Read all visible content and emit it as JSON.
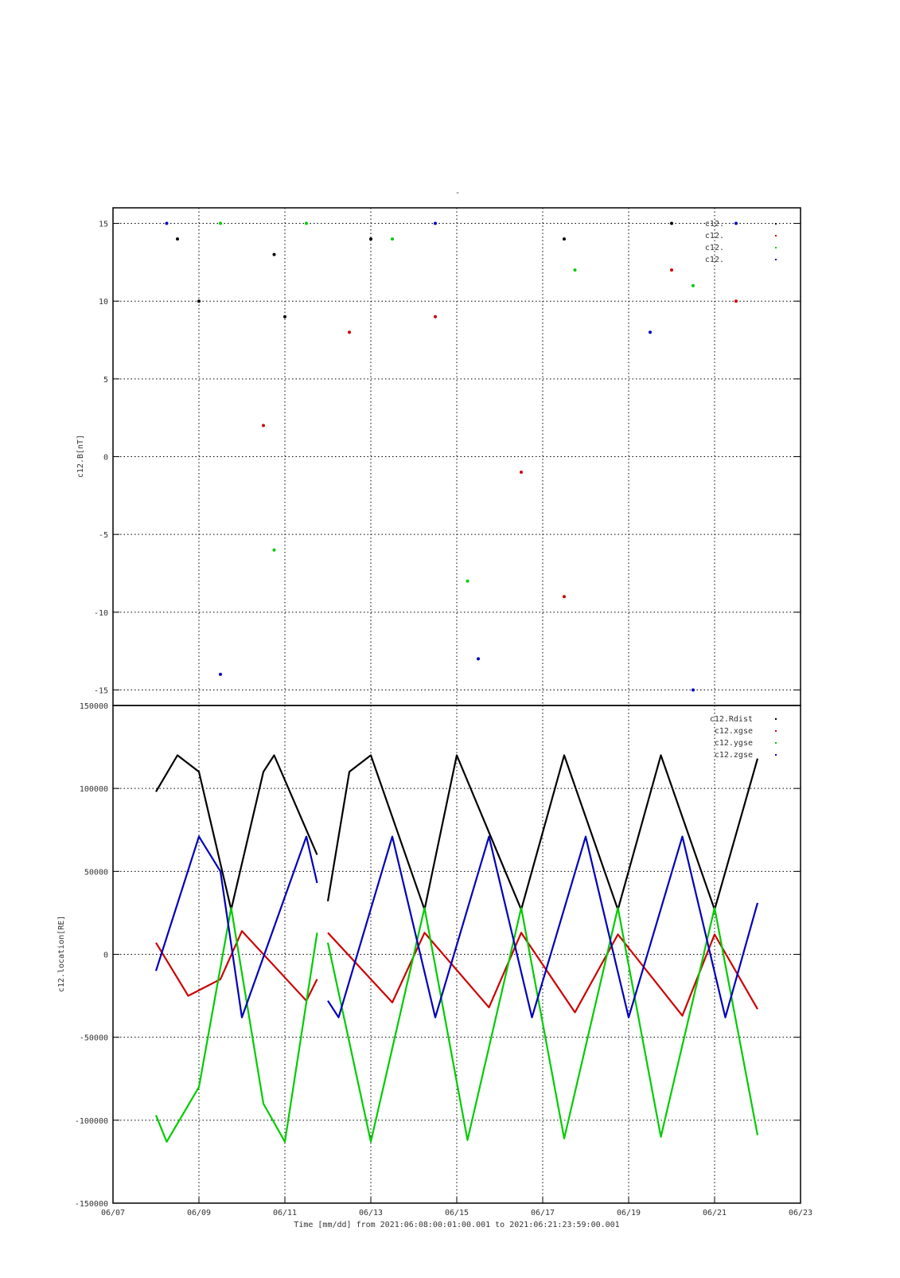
{
  "figure": {
    "top_title": "-",
    "footer_label": "Time [mm/dd]  from 2021:06:08:00:01:00.001  to  2021:06:21:23:59:00.001"
  },
  "colors": {
    "black": "#000000",
    "red": "#cc0000",
    "green": "#00cc00",
    "blue": "#0000bb",
    "grid": "#000000"
  },
  "chart_data": [
    {
      "type": "scatter",
      "id": "bfield",
      "ylabel": "c12.B[nT]",
      "ylim": [
        -16,
        16
      ],
      "yticks": [
        15,
        10,
        5,
        0,
        -5,
        -10,
        -15
      ],
      "xlim": [
        "06/07",
        "06/23"
      ],
      "xticks": [
        "06/07",
        "06/09",
        "06/11",
        "06/13",
        "06/15",
        "06/17",
        "06/19",
        "06/21",
        "06/23"
      ],
      "grid": true,
      "legend_position": "top-right",
      "legend": [
        "c12.",
        "c12.",
        "c12.",
        "c12."
      ],
      "x_range_days": [
        8.0,
        22.0
      ],
      "series": [
        {
          "color": "black",
          "points": [
            [
              "06/08 12:00",
              14
            ],
            [
              "06/09 00:00",
              10
            ],
            [
              "06/10 18:00",
              13
            ],
            [
              "06/11 00:00",
              9
            ],
            [
              "06/13 00:00",
              14
            ],
            [
              "06/17 12:00",
              14
            ],
            [
              "06/20 00:00",
              15
            ]
          ]
        },
        {
          "color": "red",
          "points": [
            [
              "06/10 12:00",
              2
            ],
            [
              "06/12 12:00",
              8
            ],
            [
              "06/14 12:00",
              9
            ],
            [
              "06/16 12:00",
              -1
            ],
            [
              "06/17 12:00",
              -9
            ],
            [
              "06/20 00:00",
              12
            ],
            [
              "06/21 12:00",
              10
            ]
          ]
        },
        {
          "color": "green",
          "points": [
            [
              "06/09 12:00",
              15
            ],
            [
              "06/11 12:00",
              15
            ],
            [
              "06/13 12:00",
              14
            ],
            [
              "06/17 18:00",
              12
            ],
            [
              "06/20 12:00",
              11
            ],
            [
              "06/10 18:00",
              -6
            ],
            [
              "06/15 06:00",
              -8
            ]
          ]
        },
        {
          "color": "blue",
          "points": [
            [
              "06/08 06:00",
              15
            ],
            [
              "06/09 12:00",
              -14
            ],
            [
              "06/14 12:00",
              15
            ],
            [
              "06/15 12:00",
              -13
            ],
            [
              "06/19 12:00",
              8
            ],
            [
              "06/20 12:00",
              -15
            ],
            [
              "06/21 12:00",
              15
            ]
          ]
        }
      ]
    },
    {
      "type": "line",
      "id": "location",
      "ylabel": "c12.location[RE]",
      "ylim": [
        -150000,
        150000
      ],
      "yticks": [
        150000,
        100000,
        50000,
        0,
        -50000,
        -100000,
        -150000
      ],
      "ytick_labels": [
        "150000",
        "100000",
        "50000",
        "0",
        "-50000",
        "-100000",
        "-150000"
      ],
      "xlim": [
        "06/07",
        "06/23"
      ],
      "xticks": [
        "06/07",
        "06/09",
        "06/11",
        "06/13",
        "06/15",
        "06/17",
        "06/19",
        "06/21",
        "06/23"
      ],
      "grid": true,
      "legend_position": "top-right",
      "legend": [
        "c12.Rdist",
        "c12.xgse",
        "c12.ygse",
        "c12.zgse"
      ],
      "data_gap": [
        "06/11 18:00",
        "06/12 00:00"
      ],
      "series": [
        {
          "name": "c12.Rdist",
          "color": "black",
          "points": [
            [
              "06/08 00:00",
              98000
            ],
            [
              "06/08 12:00",
              120000
            ],
            [
              "06/09 00:00",
              110000
            ],
            [
              "06/09 18:00",
              27000
            ],
            [
              "06/10 12:00",
              110000
            ],
            [
              "06/10 18:00",
              120000
            ],
            [
              "06/11 18:00",
              60000
            ],
            [
              "06/12 00:00",
              32000
            ],
            [
              "06/12 12:00",
              110000
            ],
            [
              "06/13 00:00",
              120000
            ],
            [
              "06/14 06:00",
              27000
            ],
            [
              "06/15 00:00",
              120000
            ],
            [
              "06/16 12:00",
              27000
            ],
            [
              "06/17 12:00",
              120000
            ],
            [
              "06/18 18:00",
              27000
            ],
            [
              "06/19 18:00",
              120000
            ],
            [
              "06/21 00:00",
              27000
            ],
            [
              "06/22 00:00",
              118000
            ]
          ]
        },
        {
          "name": "c12.xgse",
          "color": "red",
          "points": [
            [
              "06/08 00:00",
              7000
            ],
            [
              "06/08 18:00",
              -25000
            ],
            [
              "06/09 12:00",
              -15000
            ],
            [
              "06/10 00:00",
              14000
            ],
            [
              "06/11 12:00",
              -28000
            ],
            [
              "06/11 18:00",
              -15000
            ],
            [
              "06/12 00:00",
              13000
            ],
            [
              "06/13 12:00",
              -29000
            ],
            [
              "06/14 06:00",
              13000
            ],
            [
              "06/15 18:00",
              -32000
            ],
            [
              "06/16 12:00",
              13000
            ],
            [
              "06/17 18:00",
              -35000
            ],
            [
              "06/18 18:00",
              12000
            ],
            [
              "06/20 06:00",
              -37000
            ],
            [
              "06/21 00:00",
              12000
            ],
            [
              "06/22 00:00",
              -33000
            ]
          ]
        },
        {
          "name": "c12.ygse",
          "color": "green",
          "points": [
            [
              "06/08 00:00",
              -97000
            ],
            [
              "06/08 06:00",
              -113000
            ],
            [
              "06/09 00:00",
              -80000
            ],
            [
              "06/09 18:00",
              28000
            ],
            [
              "06/10 12:00",
              -90000
            ],
            [
              "06/11 00:00",
              -113000
            ],
            [
              "06/11 18:00",
              13000
            ],
            [
              "06/12 00:00",
              7000
            ],
            [
              "06/13 00:00",
              -113000
            ],
            [
              "06/14 06:00",
              28000
            ],
            [
              "06/15 06:00",
              -112000
            ],
            [
              "06/16 12:00",
              28000
            ],
            [
              "06/17 12:00",
              -111000
            ],
            [
              "06/18 18:00",
              28000
            ],
            [
              "06/19 18:00",
              -110000
            ],
            [
              "06/21 00:00",
              28000
            ],
            [
              "06/22 00:00",
              -109000
            ]
          ]
        },
        {
          "name": "c12.zgse",
          "color": "blue",
          "points": [
            [
              "06/08 00:00",
              -10000
            ],
            [
              "06/09 00:00",
              71000
            ],
            [
              "06/09 12:00",
              50000
            ],
            [
              "06/10 00:00",
              -38000
            ],
            [
              "06/11 12:00",
              71000
            ],
            [
              "06/11 18:00",
              43000
            ],
            [
              "06/12 00:00",
              -28000
            ],
            [
              "06/12 06:00",
              -38000
            ],
            [
              "06/13 12:00",
              71000
            ],
            [
              "06/14 12:00",
              -38000
            ],
            [
              "06/15 18:00",
              71000
            ],
            [
              "06/16 18:00",
              -38000
            ],
            [
              "06/18 00:00",
              71000
            ],
            [
              "06/19 00:00",
              -38000
            ],
            [
              "06/20 06:00",
              71000
            ],
            [
              "06/21 06:00",
              -38000
            ],
            [
              "06/22 00:00",
              31000
            ]
          ]
        }
      ]
    }
  ]
}
